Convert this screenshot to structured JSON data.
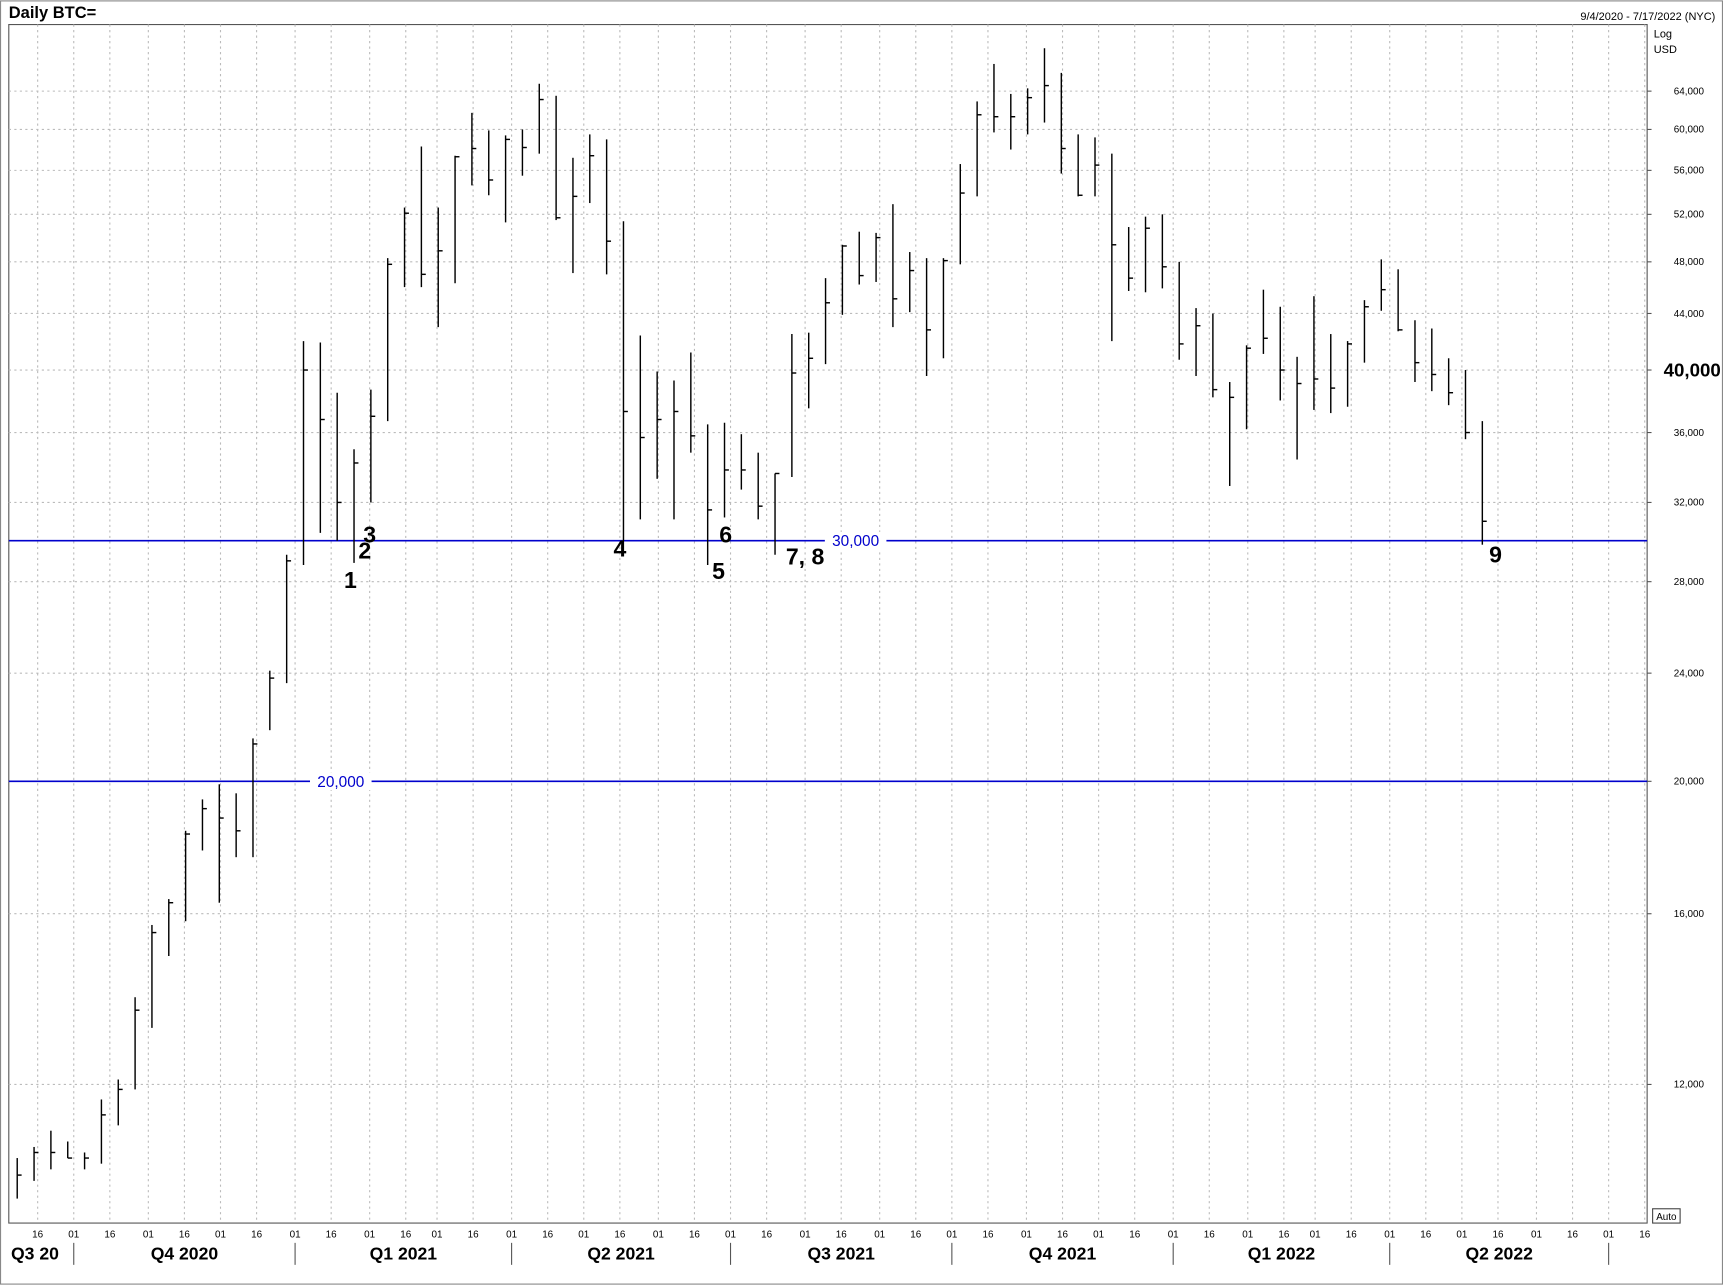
{
  "chart_data": {
    "type": "ohlc",
    "title": "Daily BTC=",
    "date_range": "9/4/2020 - 7/17/2022 (NYC)",
    "scale_label": "Log",
    "unit_label": "USD",
    "auto_label": "Auto",
    "log_scale": true,
    "grid": true,
    "color": "#000000",
    "xlim": [
      "2020-09-04",
      "2022-07-17"
    ],
    "ylim": [
      9500,
      71600
    ],
    "yticks": [
      {
        "value": 12000,
        "label": "12,000"
      },
      {
        "value": 16000,
        "label": "16,000"
      },
      {
        "value": 20000,
        "label": "20,000"
      },
      {
        "value": 24000,
        "label": "24,000"
      },
      {
        "value": 28000,
        "label": "28,000"
      },
      {
        "value": 32000,
        "label": "32,000"
      },
      {
        "value": 36000,
        "label": "36,000"
      },
      {
        "value": 40000,
        "label": "40,000"
      },
      {
        "value": 44000,
        "label": "44,000"
      },
      {
        "value": 48000,
        "label": "48,000"
      },
      {
        "value": 52000,
        "label": "52,000"
      },
      {
        "value": 56000,
        "label": "56,000"
      },
      {
        "value": 60000,
        "label": "60,000"
      },
      {
        "value": 64000,
        "label": "64,000"
      }
    ],
    "highlight_ytick": {
      "value": 40000,
      "label": "40,000"
    },
    "xticks": [
      {
        "value": "2020-09-16",
        "label": "16"
      },
      {
        "value": "2020-10-01",
        "label": "01"
      },
      {
        "value": "2020-10-16",
        "label": "16"
      },
      {
        "value": "2020-11-01",
        "label": "01"
      },
      {
        "value": "2020-11-16",
        "label": "16"
      },
      {
        "value": "2020-12-01",
        "label": "01"
      },
      {
        "value": "2020-12-16",
        "label": "16"
      },
      {
        "value": "2021-01-01",
        "label": "01"
      },
      {
        "value": "2021-01-16",
        "label": "16"
      },
      {
        "value": "2021-02-01",
        "label": "01"
      },
      {
        "value": "2021-02-16",
        "label": "16"
      },
      {
        "value": "2021-03-01",
        "label": "01"
      },
      {
        "value": "2021-03-16",
        "label": "16"
      },
      {
        "value": "2021-04-01",
        "label": "01"
      },
      {
        "value": "2021-04-16",
        "label": "16"
      },
      {
        "value": "2021-05-01",
        "label": "01"
      },
      {
        "value": "2021-05-16",
        "label": "16"
      },
      {
        "value": "2021-06-01",
        "label": "01"
      },
      {
        "value": "2021-06-16",
        "label": "16"
      },
      {
        "value": "2021-07-01",
        "label": "01"
      },
      {
        "value": "2021-07-16",
        "label": "16"
      },
      {
        "value": "2021-08-01",
        "label": "01"
      },
      {
        "value": "2021-08-16",
        "label": "16"
      },
      {
        "value": "2021-09-01",
        "label": "01"
      },
      {
        "value": "2021-09-16",
        "label": "16"
      },
      {
        "value": "2021-10-01",
        "label": "01"
      },
      {
        "value": "2021-10-16",
        "label": "16"
      },
      {
        "value": "2021-11-01",
        "label": "01"
      },
      {
        "value": "2021-11-16",
        "label": "16"
      },
      {
        "value": "2021-12-01",
        "label": "01"
      },
      {
        "value": "2021-12-16",
        "label": "16"
      },
      {
        "value": "2022-01-01",
        "label": "01"
      },
      {
        "value": "2022-01-16",
        "label": "16"
      },
      {
        "value": "2022-02-01",
        "label": "01"
      },
      {
        "value": "2022-02-16",
        "label": "16"
      },
      {
        "value": "2022-03-01",
        "label": "01"
      },
      {
        "value": "2022-03-16",
        "label": "16"
      },
      {
        "value": "2022-04-01",
        "label": "01"
      },
      {
        "value": "2022-04-16",
        "label": "16"
      },
      {
        "value": "2022-05-01",
        "label": "01"
      },
      {
        "value": "2022-05-16",
        "label": "16"
      },
      {
        "value": "2022-06-01",
        "label": "01"
      },
      {
        "value": "2022-06-16",
        "label": "16"
      },
      {
        "value": "2022-07-01",
        "label": "01"
      },
      {
        "value": "2022-07-16",
        "label": "16"
      }
    ],
    "quarters": [
      {
        "label": "Q3 20",
        "start": "2020-09-04",
        "end": "2020-10-01"
      },
      {
        "label": "Q4 2020",
        "start": "2020-10-01",
        "end": "2021-01-01"
      },
      {
        "label": "Q1 2021",
        "start": "2021-01-01",
        "end": "2021-04-01"
      },
      {
        "label": "Q2 2021",
        "start": "2021-04-01",
        "end": "2021-07-01"
      },
      {
        "label": "Q3 2021",
        "start": "2021-07-01",
        "end": "2021-10-01"
      },
      {
        "label": "Q4 2021",
        "start": "2021-10-01",
        "end": "2022-01-01"
      },
      {
        "label": "Q1 2022",
        "start": "2022-01-01",
        "end": "2022-04-01"
      },
      {
        "label": "Q2 2022",
        "start": "2022-04-01",
        "end": "2022-07-01"
      }
    ],
    "reference_lines": [
      {
        "value": 30000,
        "label": "30,000",
        "label_x": "2021-08-22",
        "color": "#0000cc"
      },
      {
        "value": 20000,
        "label": "20,000",
        "label_x": "2021-01-20",
        "color": "#0000cc"
      }
    ],
    "annotations": [
      {
        "text": "1",
        "x": "2021-01-24",
        "y": 28070
      },
      {
        "text": "2",
        "x": "2021-01-30",
        "y": 29500
      },
      {
        "text": "3",
        "x": "2021-02-01",
        "y": 30300
      },
      {
        "text": "4",
        "x": "2021-05-16",
        "y": 29600
      },
      {
        "text": "5",
        "x": "2021-06-26",
        "y": 28500
      },
      {
        "text": "6",
        "x": "2021-06-29",
        "y": 30300
      },
      {
        "text": "7, 8",
        "x": "2021-08-01",
        "y": 29200
      },
      {
        "text": "9",
        "x": "2022-05-15",
        "y": 29300
      }
    ],
    "x": [
      "2020-09-04",
      "2020-09-11",
      "2020-09-18",
      "2020-09-25",
      "2020-10-02",
      "2020-10-09",
      "2020-10-16",
      "2020-10-23",
      "2020-10-30",
      "2020-11-06",
      "2020-11-13",
      "2020-11-20",
      "2020-11-27",
      "2020-12-04",
      "2020-12-11",
      "2020-12-18",
      "2020-12-25",
      "2021-01-01",
      "2021-01-08",
      "2021-01-15",
      "2021-01-22",
      "2021-01-29",
      "2021-02-05",
      "2021-02-12",
      "2021-02-19",
      "2021-02-26",
      "2021-03-05",
      "2021-03-12",
      "2021-03-19",
      "2021-03-26",
      "2021-04-02",
      "2021-04-09",
      "2021-04-16",
      "2021-04-23",
      "2021-04-30",
      "2021-05-07",
      "2021-05-14",
      "2021-05-21",
      "2021-05-28",
      "2021-06-04",
      "2021-06-11",
      "2021-06-18",
      "2021-06-25",
      "2021-07-02",
      "2021-07-09",
      "2021-07-16",
      "2021-07-23",
      "2021-07-30",
      "2021-08-06",
      "2021-08-13",
      "2021-08-20",
      "2021-08-27",
      "2021-09-03",
      "2021-09-10",
      "2021-09-17",
      "2021-09-24",
      "2021-10-01",
      "2021-10-08",
      "2021-10-15",
      "2021-10-22",
      "2021-10-29",
      "2021-11-05",
      "2021-11-12",
      "2021-11-19",
      "2021-11-26",
      "2021-12-03",
      "2021-12-10",
      "2021-12-17",
      "2021-12-24",
      "2021-12-31",
      "2022-01-07",
      "2022-01-14",
      "2022-01-21",
      "2022-01-28",
      "2022-02-04",
      "2022-02-11",
      "2022-02-18",
      "2022-02-25",
      "2022-03-04",
      "2022-03-11",
      "2022-03-18",
      "2022-03-25",
      "2022-04-01",
      "2022-04-08",
      "2022-04-15",
      "2022-04-22",
      "2022-04-29",
      "2022-05-06"
    ],
    "high": [
      10600,
      10800,
      11100,
      10900,
      10700,
      11700,
      12100,
      13900,
      15700,
      16400,
      18400,
      19400,
      19900,
      19600,
      21500,
      24100,
      29300,
      42000,
      41900,
      38500,
      35000,
      38700,
      48300,
      52600,
      58300,
      52600,
      57400,
      61700,
      59900,
      59400,
      60000,
      64800,
      63500,
      57200,
      59500,
      59000,
      51400,
      42400,
      39900,
      39300,
      41200,
      36500,
      36600,
      35900,
      34800,
      33600,
      42500,
      42600,
      46700,
      49400,
      50500,
      50400,
      52900,
      48800,
      48300,
      48300,
      56600,
      62900,
      67000,
      63700,
      64300,
      68800,
      66000,
      59500,
      59200,
      57600,
      50900,
      51800,
      52000,
      48000,
      44400,
      44000,
      39200,
      41700,
      45800,
      44500,
      40900,
      45300,
      42500,
      42000,
      45000,
      48200,
      47400,
      43500,
      42900,
      40800,
      40000,
      36700
    ],
    "low": [
      9900,
      10200,
      10400,
      10600,
      10400,
      10500,
      11200,
      11900,
      13200,
      14900,
      15800,
      17800,
      16300,
      17600,
      17600,
      21800,
      23600,
      28800,
      30400,
      30000,
      28900,
      32000,
      36700,
      46000,
      46000,
      43000,
      46300,
      54600,
      53700,
      51300,
      55500,
      57600,
      51500,
      47100,
      53000,
      47000,
      30000,
      31100,
      33300,
      31100,
      34800,
      28800,
      31200,
      32700,
      31100,
      29300,
      33400,
      37500,
      40400,
      43900,
      46200,
      46400,
      43000,
      44100,
      39600,
      40800,
      47800,
      53600,
      59700,
      58000,
      59500,
      60700,
      55700,
      53600,
      53600,
      42000,
      45700,
      45600,
      45900,
      40700,
      39600,
      38200,
      32900,
      36200,
      41100,
      38000,
      34400,
      37400,
      37200,
      37600,
      40500,
      44200,
      42700,
      39200,
      38600,
      37700,
      35600,
      29800
    ],
    "close": [
      10300,
      10700,
      10700,
      10600,
      10600,
      11400,
      11900,
      13600,
      15500,
      16300,
      18300,
      19100,
      18800,
      18400,
      21300,
      23800,
      29000,
      40000,
      36800,
      32000,
      34200,
      37000,
      47800,
      52100,
      47000,
      48900,
      57300,
      58100,
      55100,
      59000,
      58200,
      63100,
      51700,
      53600,
      57400,
      49700,
      37300,
      35700,
      36800,
      37300,
      35800,
      31600,
      33800,
      33800,
      31800,
      33600,
      39800,
      40800,
      44800,
      49300,
      46900,
      50000,
      45100,
      47300,
      42800,
      48100,
      53900,
      61500,
      61300,
      61300,
      63300,
      64600,
      58100,
      53700,
      56500,
      49400,
      46700,
      50800,
      47600,
      41800,
      43100,
      38700,
      38200,
      41500,
      42200,
      40000,
      39100,
      39400,
      38800,
      41800,
      44500,
      45800,
      42800,
      40500,
      39700,
      38500,
      36000,
      31000
    ]
  }
}
